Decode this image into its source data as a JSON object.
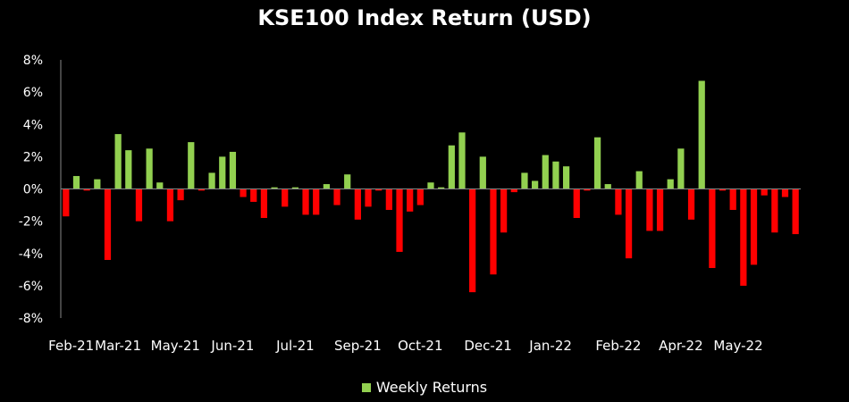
{
  "chart_data": {
    "type": "bar",
    "title": "KSE100 Index Return (USD)",
    "xlabel": "",
    "ylabel": "",
    "ylim": [
      -8,
      8
    ],
    "y_ticks": [
      "8%",
      "6%",
      "4%",
      "2%",
      "0%",
      "-2%",
      "-4%",
      "-6%",
      "-8%"
    ],
    "x_tick_labels": [
      "Feb-21",
      "Mar-21",
      "May-21",
      "Jun-21",
      "Jul-21",
      "Sep-21",
      "Oct-21",
      "Dec-21",
      "Jan-22",
      "Feb-22",
      "Apr-22",
      "May-22"
    ],
    "x_tick_positions": [
      1,
      5.5,
      11,
      16.5,
      22.5,
      28.5,
      34.5,
      41,
      47,
      53.5,
      59.5,
      65
    ],
    "legend": "Weekly Returns",
    "legend_position": "bottom",
    "grid": false,
    "colors": {
      "positive": "#92d050",
      "negative": "#ff0000"
    },
    "series": [
      {
        "name": "Weekly Returns",
        "values": [
          -1.7,
          0.8,
          -0.1,
          0.6,
          -4.4,
          3.4,
          2.4,
          -2.0,
          2.5,
          0.4,
          -2.0,
          -0.7,
          2.9,
          -0.1,
          1.0,
          2.0,
          2.3,
          -0.5,
          -0.8,
          -1.8,
          0.1,
          -1.1,
          0.1,
          -1.6,
          -1.6,
          0.3,
          -1.0,
          0.9,
          -1.9,
          -1.1,
          -0.1,
          -1.3,
          -3.9,
          -1.4,
          -1.0,
          0.4,
          0.1,
          2.7,
          3.5,
          -6.4,
          2.0,
          -5.3,
          -2.7,
          -0.2,
          1.0,
          0.5,
          2.1,
          1.7,
          1.4,
          -1.8,
          -0.1,
          3.2,
          0.3,
          -1.6,
          -4.3,
          1.1,
          -2.6,
          -2.6,
          0.6,
          2.5,
          -1.9,
          6.7,
          -4.9,
          -0.1,
          -1.3,
          -6.0,
          -4.7,
          -0.4,
          -2.7,
          -0.5,
          -2.8
        ]
      }
    ]
  }
}
